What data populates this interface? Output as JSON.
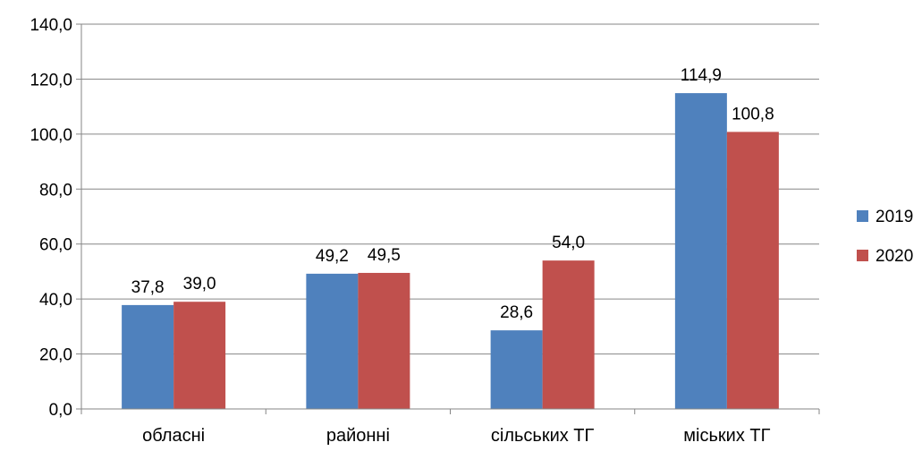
{
  "chart_data": {
    "type": "bar",
    "categories": [
      "обласні",
      "районні",
      "сільських ТГ",
      "міських ТГ"
    ],
    "series": [
      {
        "name": "2019",
        "color": "#4f81bd",
        "values": [
          37.8,
          49.2,
          28.6,
          114.9
        ],
        "labels": [
          "37,8",
          "49,2",
          "28,6",
          "114,9"
        ]
      },
      {
        "name": "2020",
        "color": "#c0504d",
        "values": [
          39.0,
          49.5,
          54.0,
          100.8
        ],
        "labels": [
          "39,0",
          "49,5",
          "54,0",
          "100,8"
        ]
      }
    ],
    "ylim": [
      0,
      140
    ],
    "yticks": [
      0,
      20,
      40,
      60,
      80,
      100,
      120,
      140
    ],
    "ytick_labels": [
      "0,0",
      "20,0",
      "40,0",
      "60,0",
      "80,0",
      "100,0",
      "120,0",
      "140,0"
    ],
    "grid": true,
    "legend": "right",
    "title": "",
    "xlabel": "",
    "ylabel": ""
  }
}
